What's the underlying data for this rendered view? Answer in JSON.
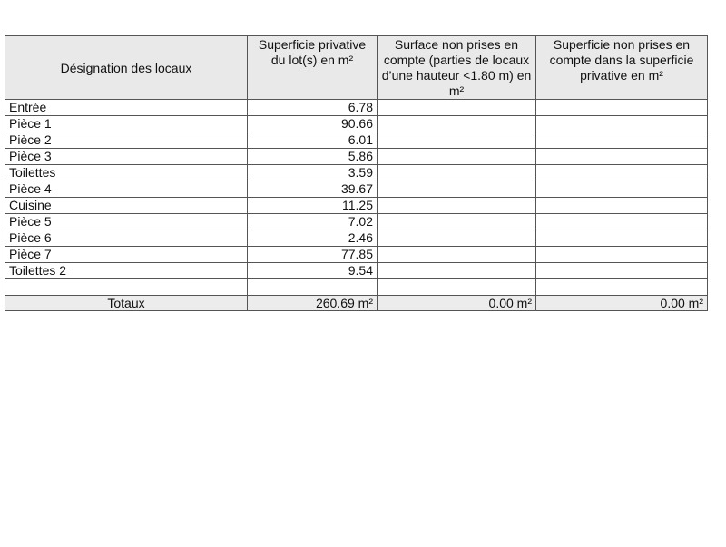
{
  "table": {
    "headers": [
      "Désignation des locaux",
      "Superficie privative du lot(s) en m²",
      "Surface non prises en compte (parties de locaux d’une hauteur <1.80 m) en m²",
      "Superficie non prises en compte dans la superficie privative en m²"
    ],
    "rows": [
      {
        "name": "Entrée",
        "area": "6.78"
      },
      {
        "name": "Pièce 1",
        "area": "90.66"
      },
      {
        "name": "Pièce 2",
        "area": "6.01"
      },
      {
        "name": "Pièce 3",
        "area": "5.86"
      },
      {
        "name": "Toilettes",
        "area": "3.59"
      },
      {
        "name": "Pièce 4",
        "area": "39.67"
      },
      {
        "name": "Cuisine",
        "area": "11.25"
      },
      {
        "name": "Pièce 5",
        "area": "7.02"
      },
      {
        "name": "Pièce 6",
        "area": "2.46"
      },
      {
        "name": "Pièce 7",
        "area": "77.85"
      },
      {
        "name": "Toilettes 2",
        "area": "9.54"
      },
      {
        "name": "",
        "area": ""
      }
    ],
    "totals": {
      "label": "Totaux",
      "area": "260.69 m²",
      "low_height": "0.00 m²",
      "excluded": "0.00 m²"
    }
  }
}
